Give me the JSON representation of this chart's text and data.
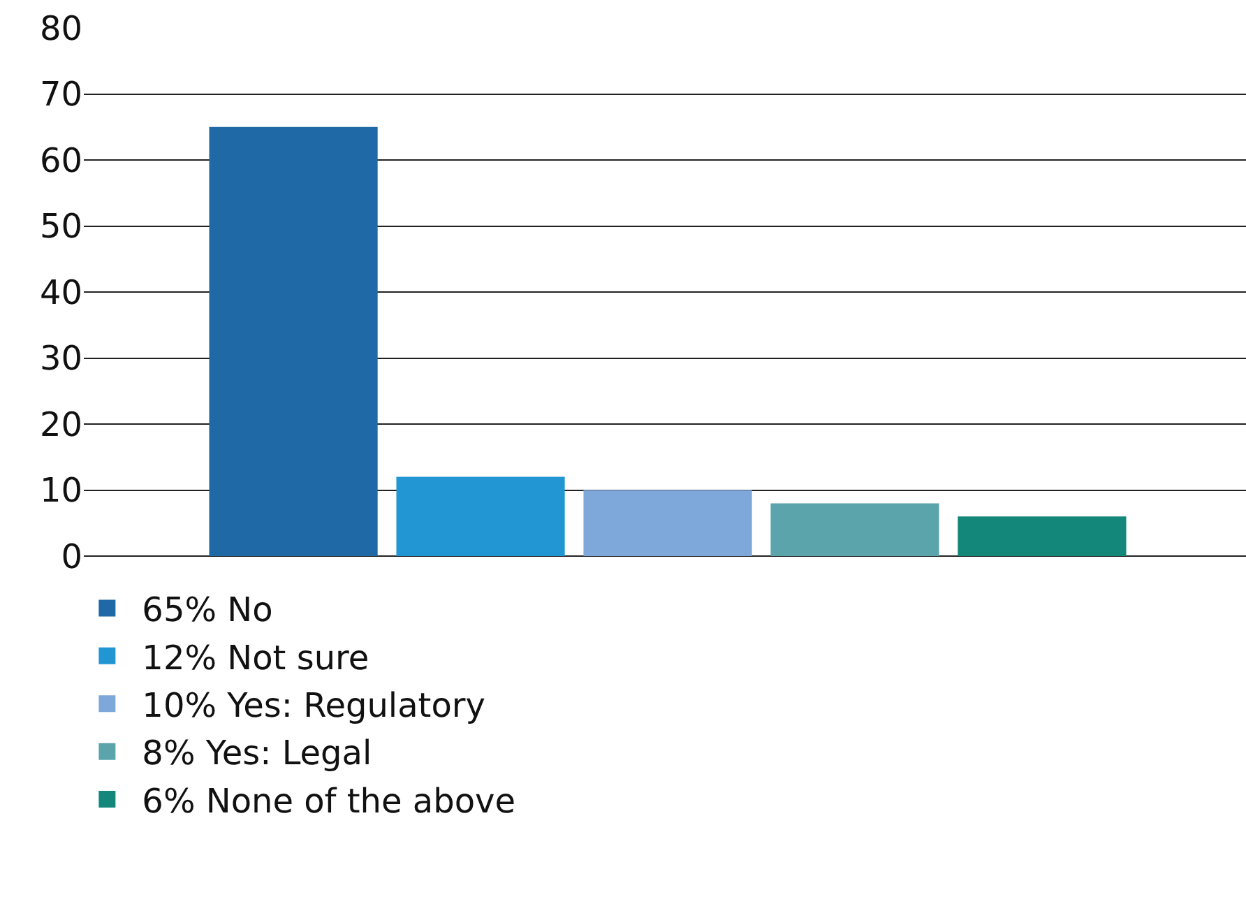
{
  "chart_data": {
    "type": "bar",
    "categories": [
      null,
      null,
      null,
      null,
      null
    ],
    "series": [
      {
        "name": "65% No",
        "color": "#1f69a6",
        "values": [
          65,
          null,
          null,
          null,
          null
        ]
      },
      {
        "name": "12% Not sure",
        "color": "#2196d3",
        "values": [
          null,
          12,
          null,
          null,
          null
        ]
      },
      {
        "name": "10% Yes: Regulatory",
        "color": "#7ea8da",
        "values": [
          null,
          null,
          10,
          null,
          null
        ]
      },
      {
        "name": "8% Yes: Legal",
        "color": "#5ba4ab",
        "values": [
          null,
          null,
          null,
          8,
          null
        ]
      },
      {
        "name": "6% None of the above",
        "color": "#12877a",
        "values": [
          null,
          null,
          null,
          null,
          6
        ]
      }
    ],
    "ylim": [
      0,
      80
    ],
    "yticks": [
      0,
      10,
      20,
      30,
      40,
      50,
      60,
      70,
      80
    ],
    "grid": "y",
    "legend": "bottom"
  }
}
